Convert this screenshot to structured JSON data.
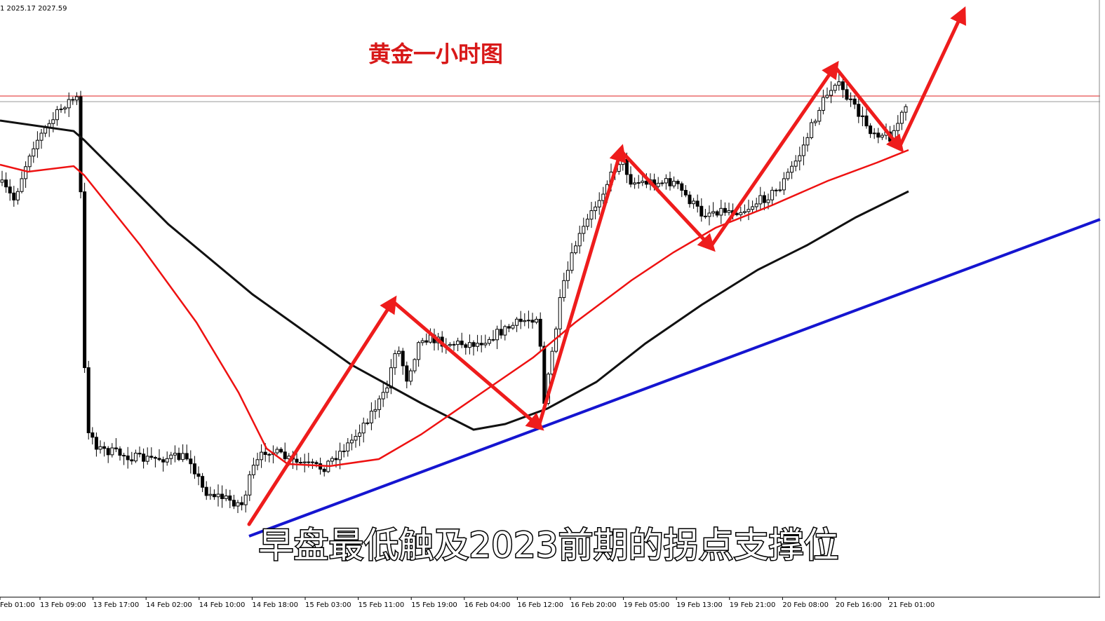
{
  "header": {
    "info": "1 2025.17 2027.59"
  },
  "title": "黄金一小时图",
  "caption": "早盘最低触及2023前期的拐点支撑位",
  "time_axis": {
    "labels": [
      "Feb 01:00",
      "13 Feb 09:00",
      "13 Feb 17:00",
      "14 Feb 02:00",
      "14 Feb 10:00",
      "14 Feb 18:00",
      "15 Feb 03:00",
      "15 Feb 11:00",
      "15 Feb 19:00",
      "16 Feb 04:00",
      "16 Feb 12:00",
      "16 Feb 20:00",
      "19 Feb 05:00",
      "19 Feb 13:00",
      "19 Feb 21:00",
      "20 Feb 08:00",
      "20 Feb 16:00",
      "21 Feb 01:00"
    ]
  }
}
